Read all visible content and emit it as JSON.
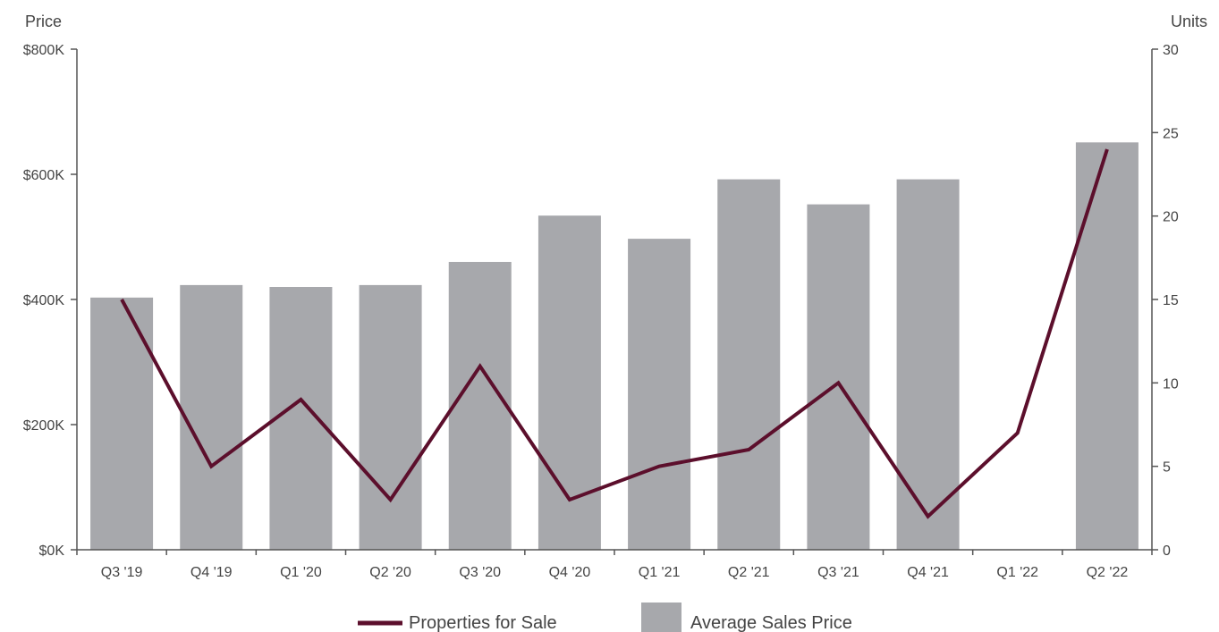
{
  "chart_data": {
    "type": "bar",
    "categories": [
      "Q3 '19",
      "Q4 '19",
      "Q1 '20",
      "Q2 '20",
      "Q3 '20",
      "Q4 '20",
      "Q1 '21",
      "Q2 '21",
      "Q3 '21",
      "Q4 '21",
      "Q1 '22",
      "Q2 '22"
    ],
    "y_left": {
      "title": "Price",
      "range": [
        0,
        800000
      ],
      "ticks": [
        0,
        200000,
        400000,
        600000,
        800000
      ],
      "tick_labels": [
        "$0K",
        "$200K",
        "$400K",
        "$600K",
        "$800K"
      ]
    },
    "y_right": {
      "title": "Units",
      "range": [
        0,
        30
      ],
      "ticks": [
        0,
        5,
        10,
        15,
        20,
        25,
        30
      ],
      "tick_labels": [
        "0",
        "5",
        "10",
        "15",
        "20",
        "25",
        "30"
      ]
    },
    "series": [
      {
        "name": "Average Sales Price",
        "type": "bar",
        "axis": "left",
        "color": "#a7a8ac",
        "values": [
          403000,
          423000,
          420000,
          423000,
          460000,
          534000,
          497000,
          592000,
          552000,
          592000,
          null,
          651000
        ]
      },
      {
        "name": "Properties for Sale",
        "type": "line",
        "axis": "right",
        "color": "#5c0f2c",
        "values": [
          15,
          5,
          9,
          3,
          11,
          3,
          5,
          6,
          10,
          2,
          7,
          24
        ]
      }
    ],
    "legend": {
      "position": "bottom",
      "entries": [
        "Properties for Sale",
        "Average Sales Price"
      ]
    },
    "grid": false
  }
}
